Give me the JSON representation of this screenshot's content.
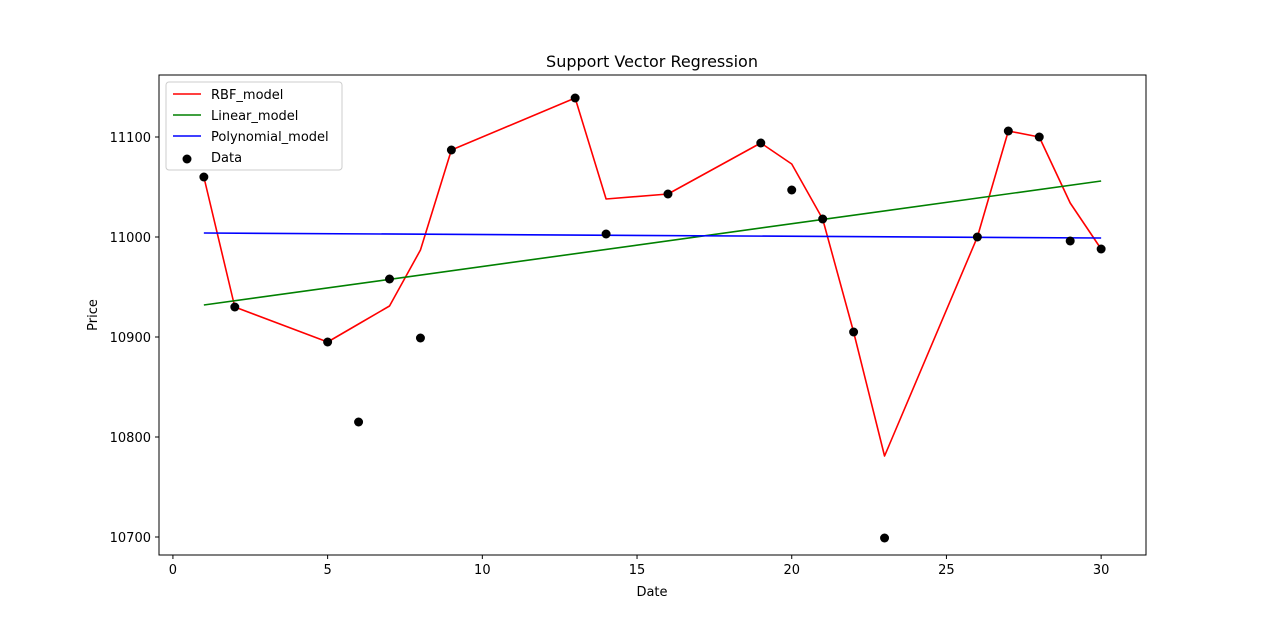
{
  "chart_data": {
    "type": "line",
    "title": "Support Vector Regression",
    "xlabel": "Date",
    "ylabel": "Price",
    "xlim": [
      -0.45,
      31.45
    ],
    "ylim": [
      10682,
      11162
    ],
    "xticks": [
      0,
      5,
      10,
      15,
      20,
      25,
      30
    ],
    "yticks": [
      10700,
      10800,
      10900,
      11000,
      11100
    ],
    "grid": false,
    "legend_position": "top-left",
    "series": [
      {
        "name": "RBF_model",
        "kind": "line",
        "color": "#ff0000",
        "points": [
          [
            1,
            11060
          ],
          [
            2,
            10930
          ],
          [
            5,
            10895
          ],
          [
            6,
            10913
          ],
          [
            7,
            10931
          ],
          [
            8,
            10987
          ],
          [
            9,
            11087
          ],
          [
            13,
            11139
          ],
          [
            14,
            11038
          ],
          [
            16,
            11043
          ],
          [
            19,
            11094
          ],
          [
            20,
            11073
          ],
          [
            21,
            11018
          ],
          [
            22,
            10905
          ],
          [
            23,
            10781
          ],
          [
            26,
            11000
          ],
          [
            27,
            11106
          ],
          [
            28,
            11100
          ],
          [
            29,
            11034
          ],
          [
            30,
            10988
          ]
        ]
      },
      {
        "name": "Linear_model",
        "kind": "line",
        "color": "#008000",
        "points": [
          [
            1,
            10932
          ],
          [
            30,
            11056
          ]
        ]
      },
      {
        "name": "Polynomial_model",
        "kind": "line",
        "color": "#0000ff",
        "points": [
          [
            1,
            11004
          ],
          [
            30,
            10999
          ]
        ]
      },
      {
        "name": "Data",
        "kind": "scatter",
        "color": "#000000",
        "points": [
          [
            1,
            11060
          ],
          [
            2,
            10930
          ],
          [
            5,
            10895
          ],
          [
            6,
            10815
          ],
          [
            7,
            10958
          ],
          [
            8,
            10899
          ],
          [
            9,
            11087
          ],
          [
            13,
            11139
          ],
          [
            14,
            11003
          ],
          [
            16,
            11043
          ],
          [
            19,
            11094
          ],
          [
            20,
            11047
          ],
          [
            21,
            11018
          ],
          [
            22,
            10905
          ],
          [
            23,
            10699
          ],
          [
            26,
            11000
          ],
          [
            27,
            11106
          ],
          [
            28,
            11100
          ],
          [
            29,
            10996
          ],
          [
            30,
            10988
          ]
        ]
      }
    ]
  }
}
